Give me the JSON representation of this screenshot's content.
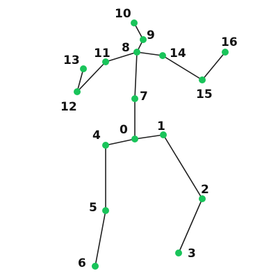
{
  "diagram": {
    "joints": [
      {
        "id": "0",
        "label": "0"
      },
      {
        "id": "1",
        "label": "1"
      },
      {
        "id": "2",
        "label": "2"
      },
      {
        "id": "3",
        "label": "3"
      },
      {
        "id": "4",
        "label": "4"
      },
      {
        "id": "5",
        "label": "5"
      },
      {
        "id": "6",
        "label": "6"
      },
      {
        "id": "7",
        "label": "7"
      },
      {
        "id": "8",
        "label": "8"
      },
      {
        "id": "9",
        "label": "9"
      },
      {
        "id": "10",
        "label": "10"
      },
      {
        "id": "11",
        "label": "11"
      },
      {
        "id": "12",
        "label": "12"
      },
      {
        "id": "13",
        "label": "13"
      },
      {
        "id": "14",
        "label": "14"
      },
      {
        "id": "15",
        "label": "15"
      },
      {
        "id": "16",
        "label": "16"
      }
    ],
    "bones": [
      [
        "0",
        "1"
      ],
      [
        "1",
        "2"
      ],
      [
        "2",
        "3"
      ],
      [
        "0",
        "4"
      ],
      [
        "4",
        "5"
      ],
      [
        "5",
        "6"
      ],
      [
        "0",
        "7"
      ],
      [
        "7",
        "8"
      ],
      [
        "8",
        "9"
      ],
      [
        "9",
        "10"
      ],
      [
        "8",
        "11"
      ],
      [
        "11",
        "12"
      ],
      [
        "12",
        "13"
      ],
      [
        "8",
        "14"
      ],
      [
        "14",
        "15"
      ],
      [
        "15",
        "16"
      ]
    ],
    "colors": {
      "joint": "#19c45a",
      "bone": "#1f1f1f",
      "label": "#111111"
    }
  }
}
